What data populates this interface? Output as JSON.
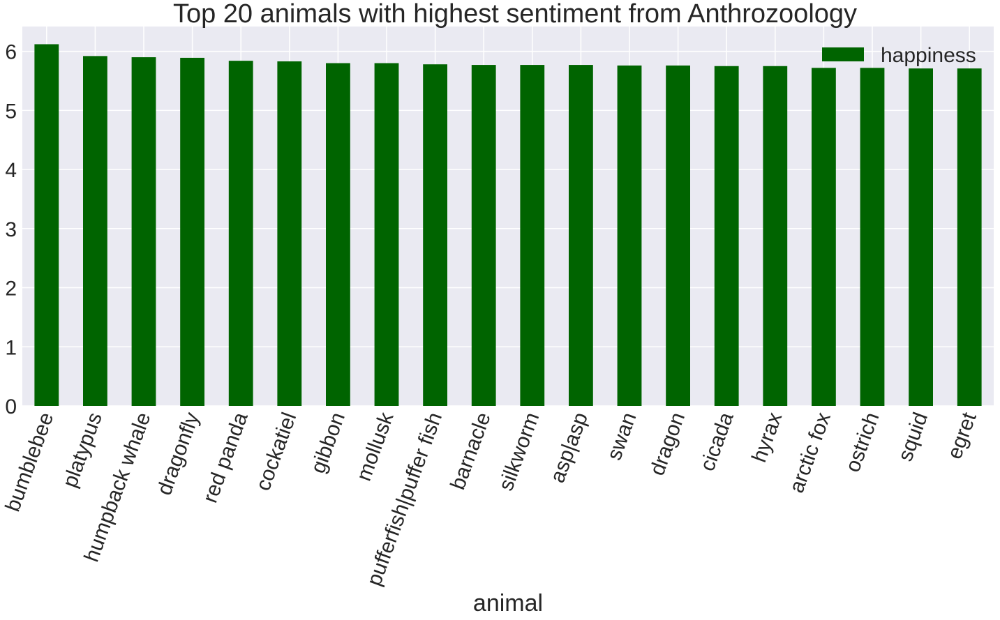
{
  "chart_data": {
    "type": "bar",
    "title": "Top 20 animals with highest sentiment from Anthrozoology",
    "xlabel": "animal",
    "ylabel": "",
    "categories": [
      "bumblebee",
      "platypus",
      "humpback whale",
      "dragonfly",
      "red panda",
      "cockatiel",
      "gibbon",
      "mollusk",
      "pufferfish|puffer fish",
      "barnacle",
      "silkworm",
      "asp|asp",
      "swan",
      "dragon",
      "cicada",
      "hyrax",
      "arctic fox",
      "ostrich",
      "squid",
      "egret"
    ],
    "series": [
      {
        "name": "happiness",
        "color": "#006400",
        "values": [
          6.12,
          5.92,
          5.9,
          5.89,
          5.84,
          5.83,
          5.8,
          5.8,
          5.78,
          5.77,
          5.77,
          5.77,
          5.76,
          5.76,
          5.75,
          5.75,
          5.72,
          5.72,
          5.71,
          5.71
        ]
      }
    ],
    "yticks": [
      0,
      1,
      2,
      3,
      4,
      5,
      6
    ],
    "ylim": [
      0,
      6.42
    ],
    "grid": true,
    "legend_position": "top-right",
    "background": "#eaeaf2"
  }
}
